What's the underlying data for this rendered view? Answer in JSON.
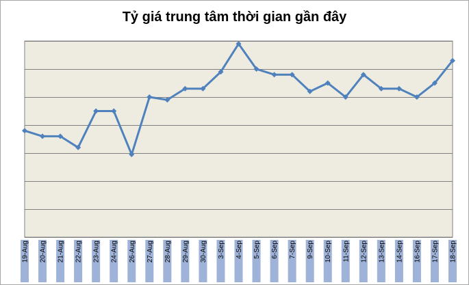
{
  "title": "Tỷ giá trung tâm thời gian gần đây",
  "colors": {
    "plot_background": "#eeece1",
    "gridline": "#808080",
    "series_line": "#4f81bd",
    "label_band": "#9fb3d9"
  },
  "chart_data": {
    "type": "line",
    "title": "Tỷ giá trung tâm thời gian gần đây",
    "xlabel": "",
    "ylabel": "",
    "grid": true,
    "legend": "none",
    "marker": "diamond",
    "categories": [
      "19-Aug",
      "20-Aug",
      "21-Aug",
      "22-Aug",
      "23-Aug",
      "24-Aug",
      "26-Aug",
      "27-Aug",
      "28-Aug",
      "29-Aug",
      "30-Aug",
      "3-Sep",
      "4-Sep",
      "5-Sep",
      "6-Sep",
      "7-Sep",
      "9-Sep",
      "10-Sep",
      "11-Sep",
      "12-Sep",
      "13-Sep",
      "14-Sep",
      "16-Sep",
      "17-Sep",
      "18-Sep"
    ],
    "series": [
      {
        "values": [
          2.8,
          2.6,
          2.6,
          2.2,
          3.5,
          3.5,
          1.95,
          4.0,
          3.9,
          4.3,
          4.3,
          4.9,
          5.9,
          5.0,
          4.8,
          4.8,
          4.2,
          4.5,
          4.0,
          4.8,
          4.3,
          4.3,
          4.0,
          4.5,
          5.3
        ]
      }
    ],
    "ylim": [
      -1,
      6
    ]
  }
}
